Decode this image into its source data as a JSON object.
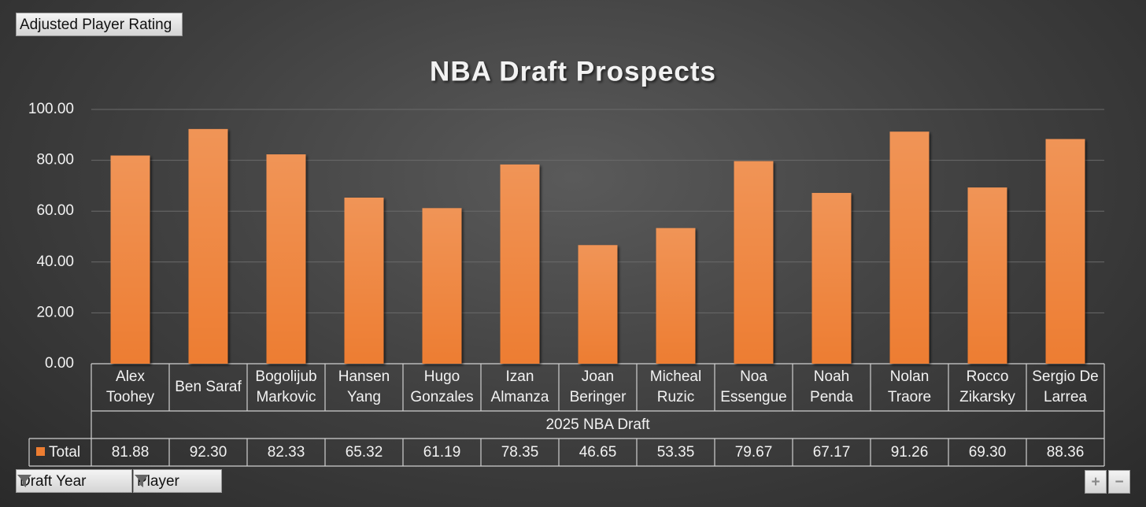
{
  "controls": {
    "field": "Adjusted Player Rating",
    "filters": [
      "Draft Year",
      "Player"
    ]
  },
  "chart_data": {
    "type": "bar",
    "title": "NBA Draft Prospects",
    "categories": [
      "Alex Toohey",
      "Ben Saraf",
      "Bogolijub Markovic",
      "Hansen Yang",
      "Hugo Gonzales",
      "Izan Almanza",
      "Joan Beringer",
      "Micheal Ruzic",
      "Noa Essengue",
      "Noah Penda",
      "Nolan Traore",
      "Rocco Zikarsky",
      "Sergio De Larrea"
    ],
    "group_label": "2025 NBA Draft",
    "series": [
      {
        "name": "Total",
        "color": "#ed7d31",
        "values": [
          81.88,
          92.3,
          82.33,
          65.32,
          61.19,
          78.35,
          46.65,
          53.35,
          79.67,
          67.17,
          91.26,
          69.3,
          88.36
        ],
        "value_labels": [
          "81.88",
          "92.30",
          "82.33",
          "65.32",
          "61.19",
          "78.35",
          "46.65",
          "53.35",
          "79.67",
          "67.17",
          "91.26",
          "69.30",
          "88.36"
        ]
      }
    ],
    "ylim": [
      0,
      100
    ],
    "yticks": [
      {
        "value": 0,
        "label": "0.00"
      },
      {
        "value": 20,
        "label": "20.00"
      },
      {
        "value": 40,
        "label": "40.00"
      },
      {
        "value": 60,
        "label": "60.00"
      },
      {
        "value": 80,
        "label": "80.00"
      },
      {
        "value": 100,
        "label": "100.00"
      }
    ],
    "grid": true
  }
}
